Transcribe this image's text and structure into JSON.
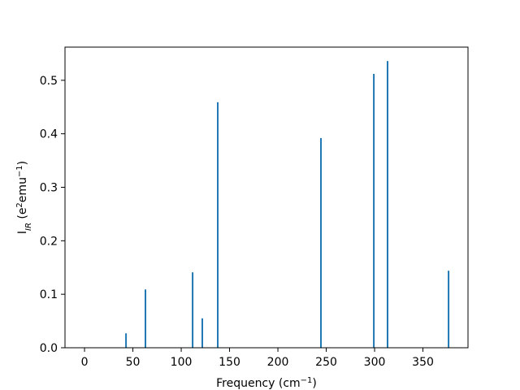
{
  "chart_data": {
    "type": "bar",
    "x": [
      42.9,
      63.0,
      111.8,
      121.8,
      137.8,
      244.5,
      299.2,
      313.4,
      376.5
    ],
    "values": [
      0.027,
      0.109,
      0.141,
      0.055,
      0.459,
      0.392,
      0.512,
      0.536,
      0.144
    ],
    "color": "#1f77b4",
    "x_label": [
      {
        "text": "Frequency (cm"
      },
      {
        "text": "−1",
        "sup": true
      },
      {
        "text": ")"
      }
    ],
    "y_label": [
      {
        "text": "I"
      },
      {
        "text": "IR",
        "sub": true
      },
      {
        "text": " (e"
      },
      {
        "text": "2",
        "sup": true
      },
      {
        "text": "emu"
      },
      {
        "text": "−1",
        "sup": true
      },
      {
        "text": ")"
      }
    ],
    "xlim": [
      -20.2,
      396.6
    ],
    "xticks": [
      0,
      50,
      100,
      150,
      200,
      250,
      300,
      350
    ],
    "ylim": [
      0,
      0.562
    ],
    "yticks": [
      {
        "value": 0,
        "label": "0.0"
      },
      0.1,
      0.2,
      0.3,
      0.4,
      0.5
    ]
  }
}
